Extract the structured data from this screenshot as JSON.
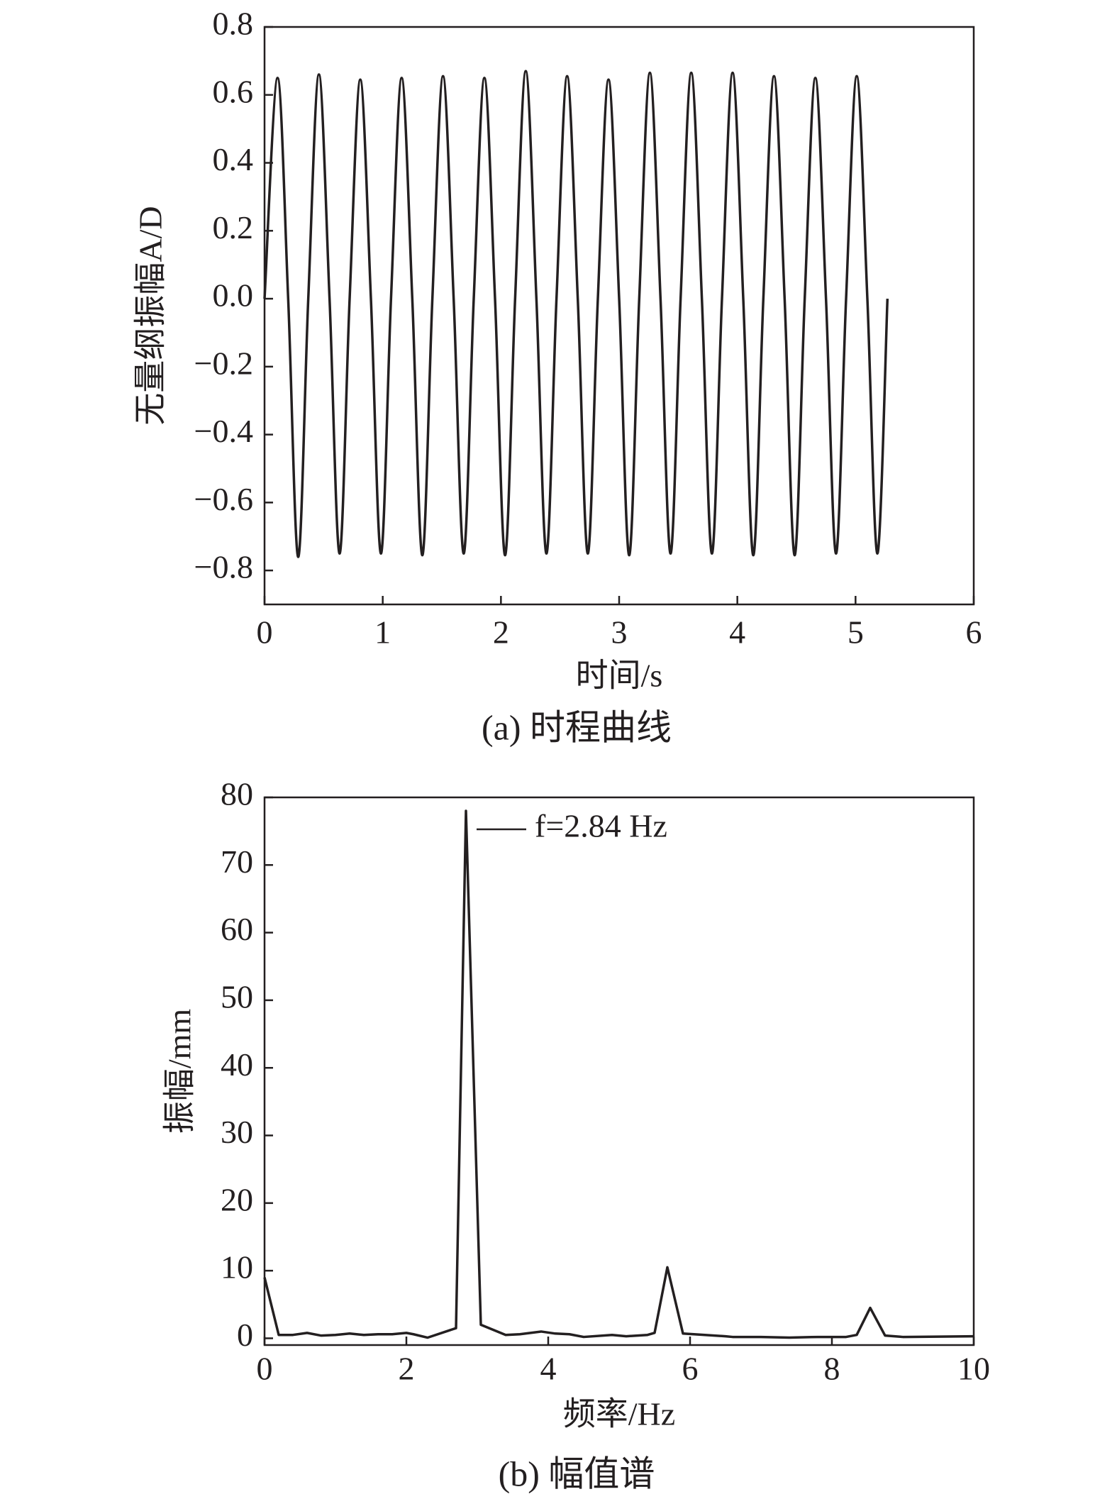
{
  "chart_data": [
    {
      "type": "line",
      "smooth": true,
      "color": "#231f20",
      "caption": "(a) 时程曲线",
      "xlabel": "时间/s",
      "ylabel": "无量纲振幅A/D",
      "x": [
        0,
        0.11,
        0.2,
        0.285,
        0.37,
        0.46,
        0.55,
        0.635,
        0.72,
        0.81,
        0.9,
        0.985,
        1.07,
        1.16,
        1.25,
        1.335,
        1.42,
        1.51,
        1.6,
        1.685,
        1.77,
        1.86,
        1.95,
        2.035,
        2.12,
        2.21,
        2.3,
        2.385,
        2.47,
        2.56,
        2.65,
        2.735,
        2.82,
        2.91,
        3.0,
        3.085,
        3.17,
        3.26,
        3.35,
        3.435,
        3.52,
        3.61,
        3.7,
        3.785,
        3.87,
        3.96,
        4.05,
        4.135,
        4.22,
        4.31,
        4.4,
        4.485,
        4.57,
        4.66,
        4.75,
        4.835,
        4.92,
        5.01,
        5.1,
        5.185,
        5.27
      ],
      "values": [
        0,
        0.65,
        0,
        -0.76,
        0,
        0.66,
        0,
        -0.75,
        0,
        0.645,
        0,
        -0.75,
        0,
        0.65,
        0,
        -0.755,
        0,
        0.655,
        0,
        -0.75,
        0,
        0.65,
        0,
        -0.755,
        0,
        0.67,
        0,
        -0.75,
        0,
        0.655,
        0,
        -0.75,
        0,
        0.645,
        0,
        -0.755,
        0,
        0.665,
        0,
        -0.75,
        0,
        0.665,
        0,
        -0.75,
        0,
        0.665,
        0,
        -0.755,
        0,
        0.655,
        0,
        -0.755,
        0,
        0.65,
        0,
        -0.75,
        0,
        0.655,
        0,
        -0.75,
        0
      ],
      "xlim": [
        0,
        6
      ],
      "xticks": [
        0,
        1,
        2,
        3,
        4,
        5,
        6
      ],
      "ylim": [
        -0.9,
        0.8
      ],
      "yticks": [
        {
          "value": -0.8,
          "label": "−0.8"
        },
        {
          "value": -0.6,
          "label": "−0.6"
        },
        {
          "value": -0.4,
          "label": "−0.4"
        },
        {
          "value": -0.2,
          "label": "−0.2"
        },
        {
          "value": 0,
          "label": "0.0"
        },
        0.2,
        0.4,
        0.6,
        0.8
      ]
    },
    {
      "type": "line",
      "smooth": false,
      "color": "#231f20",
      "caption": "(b) 幅值谱",
      "xlabel": "频率/Hz",
      "ylabel": "振幅/mm",
      "annotation": "f=2.84 Hz",
      "x": [
        0,
        0.2,
        0.4,
        0.6,
        0.8,
        1.0,
        1.2,
        1.4,
        1.6,
        1.8,
        2.0,
        2.1,
        2.3,
        2.7,
        2.84,
        3.05,
        3.4,
        3.6,
        3.9,
        4.1,
        4.3,
        4.5,
        4.9,
        5.1,
        5.4,
        5.5,
        5.68,
        5.9,
        6.5,
        6.6,
        7.0,
        7.4,
        7.8,
        8.2,
        8.35,
        8.54,
        8.75,
        9.0,
        10.0
      ],
      "values": [
        9,
        0.5,
        0.5,
        0.8,
        0.4,
        0.5,
        0.7,
        0.5,
        0.6,
        0.6,
        0.8,
        0.6,
        0.1,
        1.5,
        78,
        2,
        0.5,
        0.6,
        1.0,
        0.7,
        0.6,
        0.2,
        0.5,
        0.3,
        0.5,
        0.8,
        10.5,
        0.7,
        0.3,
        0.2,
        0.2,
        0.1,
        0.2,
        0.2,
        0.5,
        4.5,
        0.4,
        0.2,
        0.3
      ],
      "xlim": [
        0,
        10
      ],
      "xticks": [
        0,
        2,
        4,
        6,
        8,
        10
      ],
      "ylim": [
        -1,
        80
      ],
      "yticks": [
        0,
        10,
        20,
        30,
        40,
        50,
        60,
        70,
        80
      ]
    }
  ]
}
